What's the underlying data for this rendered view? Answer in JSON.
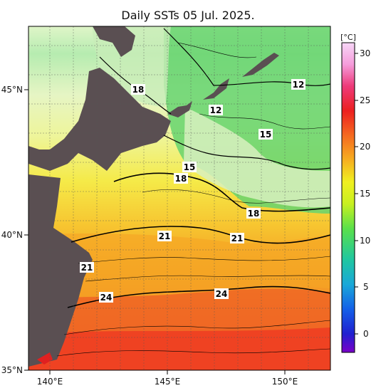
{
  "title": "Daily SSTs 05 Jul. 2025.",
  "lat_labels": [
    "45°N",
    "40°N",
    "35°N"
  ],
  "lon_labels": [
    "140°E",
    "145°E",
    "150°E"
  ],
  "contour_labels": [
    "18",
    "12",
    "12",
    "15",
    "15",
    "18",
    "18",
    "21",
    "21",
    "21",
    "24",
    "24"
  ],
  "colorbar": {
    "unit": "[°C]",
    "ticks": [
      "30",
      "25",
      "20",
      "15",
      "10",
      "5",
      "0"
    ]
  },
  "colors": {
    "land": "#5a4f52",
    "cold": "#6fd27a",
    "mild": "#f0f070",
    "warm": "#f3a020",
    "hot": "#f34a28"
  }
}
